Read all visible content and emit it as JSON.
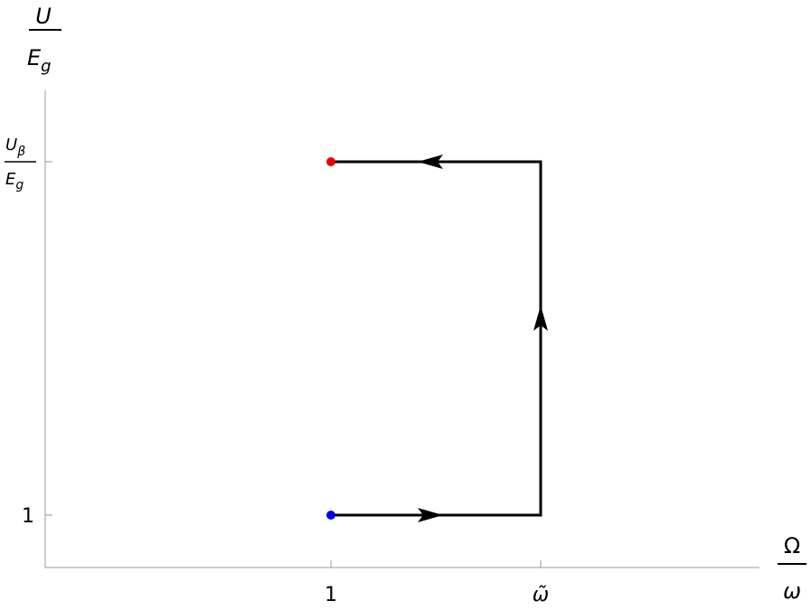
{
  "y_axis_label": {
    "numerator": "U",
    "denominator": {
      "base": "E",
      "sub": "g"
    }
  },
  "x_axis_label": {
    "numerator": "Ω",
    "denominator": "ω"
  },
  "x_ticks": [
    "1",
    "ω̃"
  ],
  "y_ticks": {
    "lower": "1",
    "upper": {
      "numerator": {
        "base": "U",
        "sub": "β"
      },
      "denominator": {
        "base": "E",
        "sub": "g"
      }
    }
  }
}
